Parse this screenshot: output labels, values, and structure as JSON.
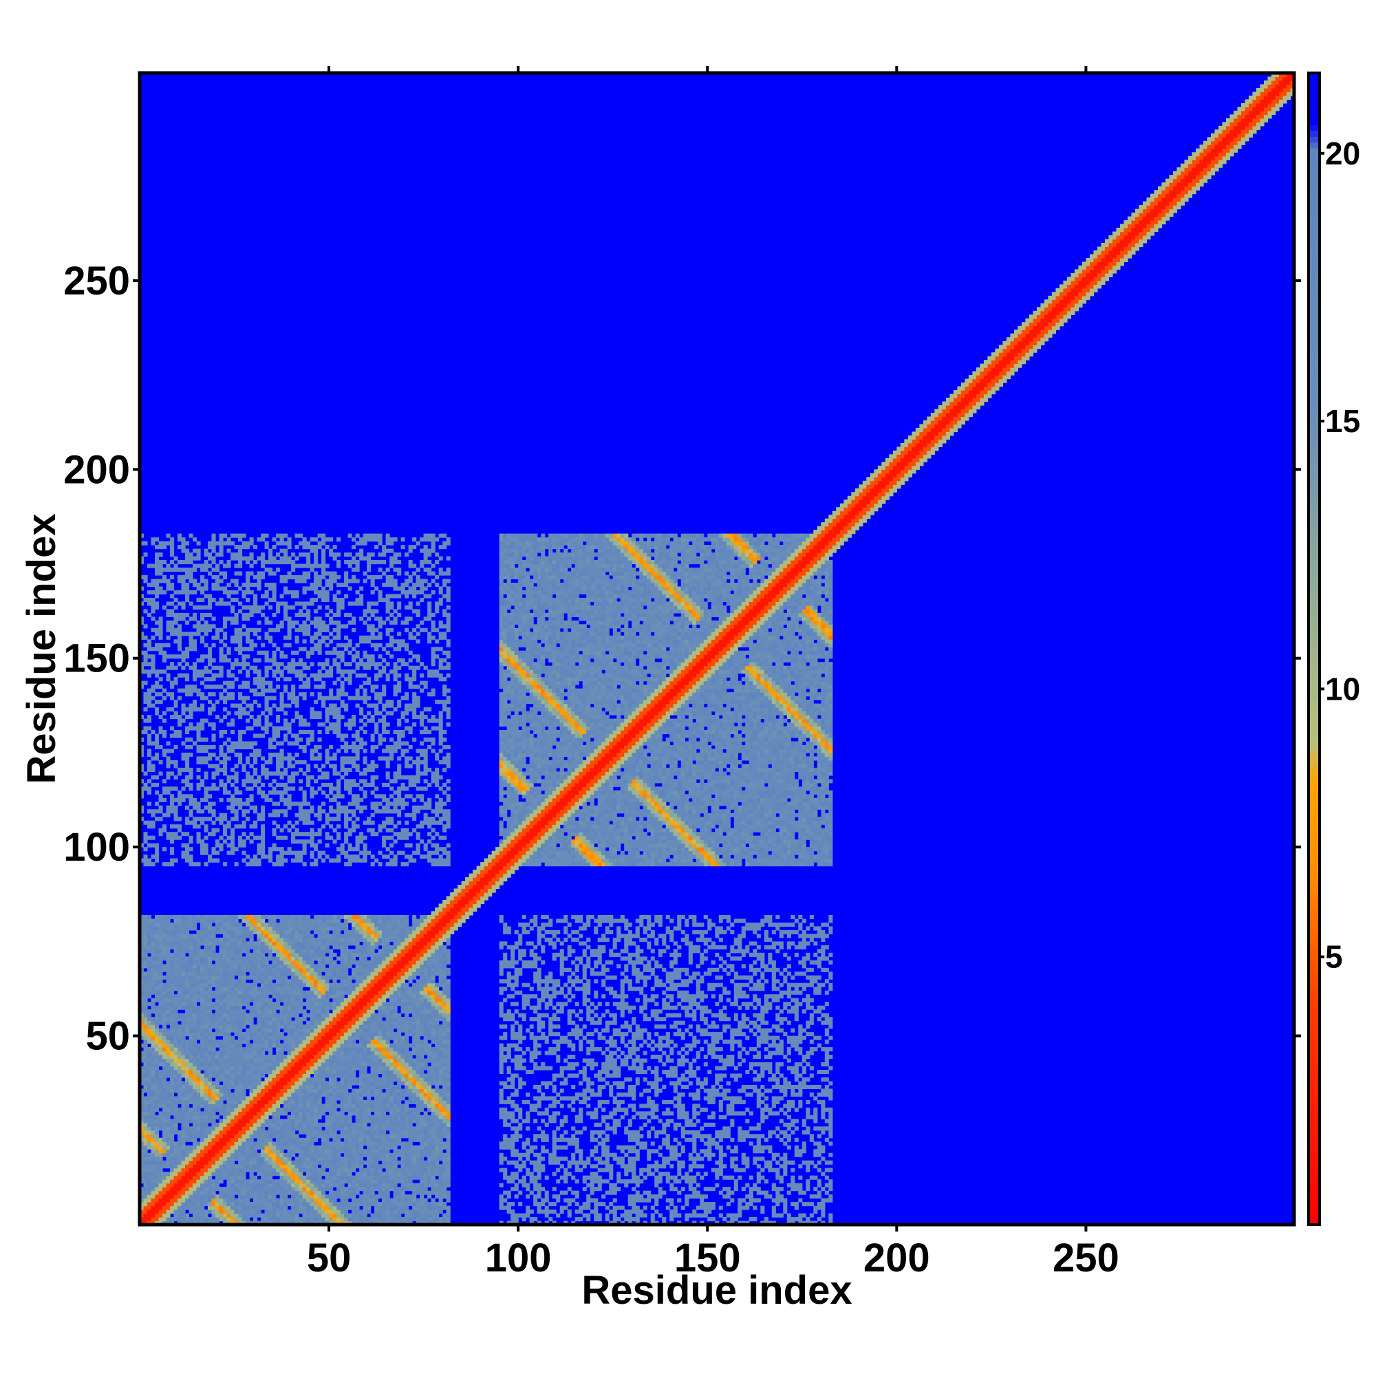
{
  "chart_data": {
    "type": "heatmap",
    "title": "",
    "xlabel": "Residue index",
    "ylabel": "Residue index",
    "n_residues": 305,
    "xlim": [
      0,
      305
    ],
    "ylim": [
      0,
      305
    ],
    "x_ticks": [
      50,
      100,
      150,
      200,
      250
    ],
    "y_ticks": [
      50,
      100,
      150,
      200,
      250
    ],
    "colorbar": {
      "ticks": [
        5,
        10,
        15,
        20
      ],
      "range": [
        0,
        21.5
      ],
      "stops": [
        {
          "value": 0,
          "color": "#ff0000"
        },
        {
          "value": 4,
          "color": "#ff3a00"
        },
        {
          "value": 6.5,
          "color": "#ff8c00"
        },
        {
          "value": 8.2,
          "color": "#ffa500"
        },
        {
          "value": 9.0,
          "color": "#b7c07a"
        },
        {
          "value": 12,
          "color": "#8eaa9a"
        },
        {
          "value": 15,
          "color": "#6a8fb8"
        },
        {
          "value": 20,
          "color": "#5f85c0"
        },
        {
          "value": 20.5,
          "color": "#0000ff"
        },
        {
          "value": 21.5,
          "color": "#0000ff"
        }
      ]
    },
    "structure": {
      "domains": [
        [
          1,
          82
        ],
        [
          96,
          183
        ]
      ],
      "background_value": 21
    },
    "colors": {
      "close": "#ff0000",
      "medium": "#ffa500",
      "contact": "#5f85c0",
      "far": "#0000ff"
    }
  }
}
